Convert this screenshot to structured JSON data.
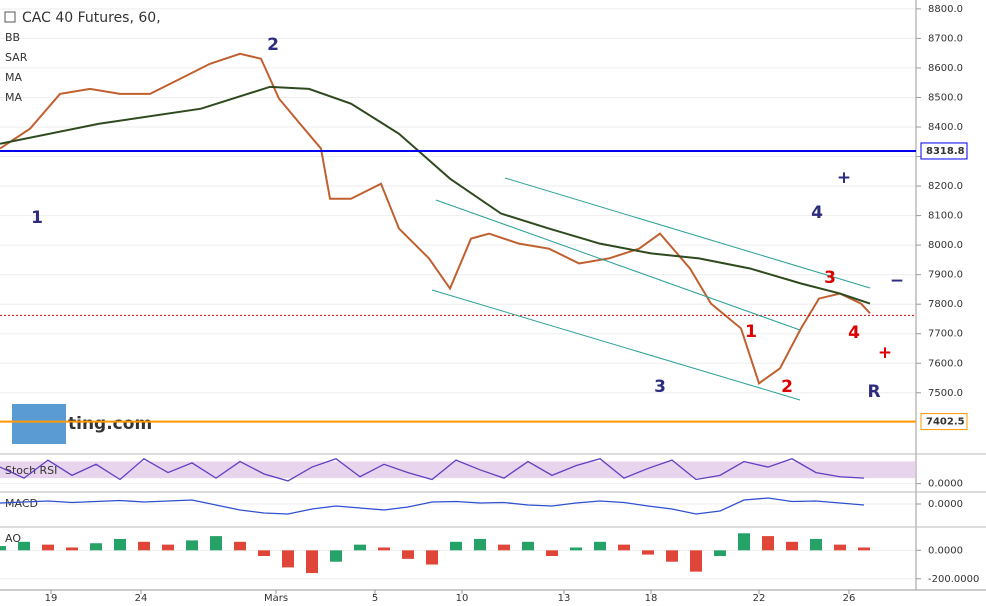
{
  "chart_data": [
    {
      "type": "line",
      "title": "CAC 40 Futures, 60,",
      "indicators": [
        "BB",
        "SAR",
        "MA",
        "MA"
      ],
      "xlim": [
        0,
        305
      ],
      "xticks": [
        {
          "value": 17,
          "label": "19"
        },
        {
          "value": 47,
          "label": "24"
        },
        {
          "value": 92,
          "label": "Mars"
        },
        {
          "value": 125,
          "label": "5"
        },
        {
          "value": 154,
          "label": "10"
        },
        {
          "value": 188,
          "label": "13"
        },
        {
          "value": 217,
          "label": "18"
        },
        {
          "value": 253,
          "label": "22"
        },
        {
          "value": 283,
          "label": "26"
        }
      ],
      "ylim": [
        7330,
        8830
      ],
      "yticks": [
        {
          "value": 7500,
          "label": "7500.0"
        },
        {
          "value": 7600,
          "label": "7600.0"
        },
        {
          "value": 7700,
          "label": "7700.0"
        },
        {
          "value": 7800,
          "label": "7800.0"
        },
        {
          "value": 7900,
          "label": "7900.0"
        },
        {
          "value": 8000,
          "label": "8000.0"
        },
        {
          "value": 8100,
          "label": "8100.0"
        },
        {
          "value": 8200,
          "label": "8200.0"
        },
        {
          "value": 8300,
          "label": "8300.0"
        },
        {
          "value": 8400,
          "label": "8400.0"
        },
        {
          "value": 8500,
          "label": "8500.0"
        },
        {
          "value": 8600,
          "label": "8600.0"
        },
        {
          "value": 8700,
          "label": "8700.0"
        },
        {
          "value": 8800,
          "label": "8800.0"
        }
      ],
      "series": [
        {
          "color": "#c06030",
          "x": [
            0,
            10,
            20,
            30,
            40,
            50,
            60,
            70,
            80,
            87,
            93,
            100,
            107,
            110,
            117,
            127,
            133,
            143,
            150,
            157,
            163,
            173,
            183,
            193,
            203,
            213,
            220,
            230,
            237,
            247,
            253,
            260,
            267,
            273,
            280,
            287,
            290
          ],
          "values": [
            8327,
            8394,
            8512,
            8529,
            8512,
            8512,
            8563,
            8614,
            8648,
            8631,
            8496,
            8411,
            8327,
            8157,
            8157,
            8208,
            8056,
            7955,
            7853,
            8022,
            8039,
            8005,
            7988,
            7938,
            7955,
            7988,
            8039,
            7921,
            7802,
            7718,
            7532,
            7583,
            7718,
            7819,
            7836,
            7802,
            7769
          ]
        },
        {
          "color": "#2e4a1e",
          "x": [
            0,
            33,
            67,
            90,
            103,
            117,
            133,
            150,
            167,
            183,
            200,
            217,
            233,
            250,
            267,
            280,
            290
          ],
          "values": [
            8343,
            8411,
            8462,
            8536,
            8529,
            8479,
            8377,
            8225,
            8107,
            8056,
            8005,
            7972,
            7955,
            7921,
            7870,
            7836,
            7802
          ]
        }
      ],
      "levels": [
        {
          "value": 8318.8,
          "label": "8318.8",
          "color": "#0000ee"
        },
        {
          "value": 7402.5,
          "label": "7402.5",
          "color": "#ff9800"
        },
        {
          "value": 7762,
          "color": "#dd0000"
        }
      ],
      "annotations": [
        "1",
        "2",
        "3",
        "4",
        "1",
        "2",
        "3",
        "4",
        "R",
        "+",
        "+",
        "−"
      ],
      "logo": "ting.com"
    },
    {
      "type": "line",
      "title": "Stoch RSI",
      "ylim": [
        -23,
        100
      ],
      "yticks": [
        {
          "value": 0,
          "label": "0.0000"
        }
      ],
      "color": "#6040c0",
      "x": [
        0,
        8,
        16,
        24,
        32,
        40,
        48,
        56,
        64,
        72,
        80,
        88,
        96,
        104,
        112,
        120,
        128,
        136,
        144,
        152,
        160,
        168,
        176,
        184,
        192,
        200,
        208,
        216,
        224,
        232,
        240,
        248,
        256,
        264,
        272,
        280,
        288
      ],
      "values": [
        60,
        20,
        85,
        30,
        70,
        15,
        90,
        40,
        75,
        20,
        80,
        35,
        10,
        60,
        90,
        25,
        70,
        40,
        15,
        85,
        50,
        20,
        80,
        30,
        65,
        90,
        20,
        55,
        85,
        15,
        30,
        80,
        60,
        90,
        40,
        25,
        20
      ]
    },
    {
      "type": "line",
      "title": "MACD",
      "ylim": [
        -42,
        20
      ],
      "yticks": [
        {
          "value": 0,
          "label": "0.0000"
        }
      ],
      "color": "#3050d0",
      "x": [
        0,
        8,
        16,
        24,
        32,
        40,
        48,
        56,
        64,
        72,
        80,
        88,
        96,
        104,
        112,
        120,
        128,
        136,
        144,
        152,
        160,
        168,
        176,
        184,
        192,
        200,
        208,
        216,
        224,
        232,
        240,
        248,
        256,
        264,
        272,
        280,
        288
      ],
      "values": [
        2,
        4,
        6,
        3,
        5,
        7,
        4,
        6,
        8,
        -2,
        -12,
        -18,
        -20,
        -10,
        -4,
        -8,
        -12,
        -6,
        4,
        5,
        2,
        3,
        -2,
        -4,
        2,
        6,
        3,
        -4,
        -10,
        -20,
        -14,
        8,
        12,
        5,
        6,
        2,
        -2
      ]
    },
    {
      "type": "bar",
      "title": "AO",
      "ylim": [
        -265,
        150
      ],
      "yticks": [
        {
          "value": 0,
          "label": "0.0000"
        },
        {
          "value": -200,
          "label": "-200.0000"
        }
      ],
      "x": [
        0,
        8,
        16,
        24,
        32,
        40,
        48,
        56,
        64,
        72,
        80,
        88,
        96,
        104,
        112,
        120,
        128,
        136,
        144,
        152,
        160,
        168,
        176,
        184,
        192,
        200,
        208,
        216,
        224,
        232,
        240,
        248,
        256,
        264,
        272,
        280,
        288
      ],
      "values": [
        30,
        60,
        40,
        20,
        50,
        80,
        60,
        40,
        70,
        100,
        60,
        -40,
        -120,
        -160,
        -80,
        40,
        20,
        -60,
        -100,
        60,
        80,
        40,
        60,
        -40,
        20,
        60,
        40,
        -30,
        -80,
        -150,
        -40,
        120,
        100,
        60,
        80,
        40,
        20
      ]
    }
  ]
}
